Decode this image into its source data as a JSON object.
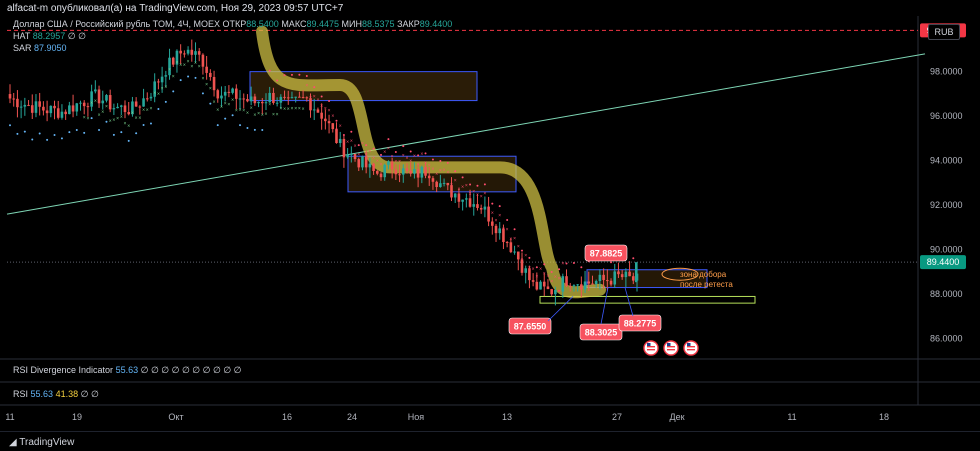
{
  "header": {
    "published": "alfacat-m опубликовал(а) на TradingView.com, Ноя 29, 2023 09:57 UTC+7"
  },
  "legend": {
    "symbol": "Доллар США / Российский рубль TOM, 4Ч, MOEX",
    "open_label": "ОТКР",
    "open_value": "88.5400",
    "high_label": "МАКС",
    "high_value": "89.4475",
    "low_label": "МИН",
    "low_value": "88.5375",
    "close_label": "ЗАКР",
    "close_value": "89.4400",
    "hat_label": "HAT",
    "hat_value": "88.2957",
    "hat_extra": "∅ ∅",
    "sar_label": "SAR",
    "sar_value": "87.9050"
  },
  "currency_button": "RUB",
  "rsi_div_panel": {
    "label": "RSI Divergence Indicator",
    "value": "55.63",
    "extra": "∅ ∅ ∅ ∅ ∅ ∅ ∅ ∅ ∅ ∅"
  },
  "rsi_panel": {
    "label": "RSI",
    "value1": "55.63",
    "value2": "41.38",
    "extra": "∅ ∅"
  },
  "footer": {
    "logo_text": "TradingView"
  },
  "chart_data": {
    "type": "candlestick",
    "y_range": [
      85,
      100.5
    ],
    "y_ticks": [
      86,
      88,
      90,
      92,
      94,
      96,
      98
    ],
    "y_tick_labels": [
      "86.0000",
      "88.0000",
      "90.0000",
      "92.0000",
      "94.0000",
      "96.0000",
      "98.0000"
    ],
    "x_ticks": [
      "11",
      "19",
      "Окт",
      "16",
      "24",
      "Ноя",
      "13",
      "27",
      "Дек",
      "11",
      "18"
    ],
    "price_labels": {
      "resistance": "99.8550",
      "current": "89.4400"
    },
    "annotations": {
      "peak": "87.8825",
      "low1": "87.6550",
      "low2": "88.3025",
      "low3": "88.2775",
      "note_line1": "зона добора",
      "note_line2": "после ретеста"
    },
    "colors": {
      "up": "#26a69a",
      "down": "#ef5350",
      "sar_up": "#64b5f6",
      "sar_cross": "#ff4d6d",
      "trendline": "#7ed6b5",
      "resistance": "#f23645",
      "marker": "#d4c545",
      "current": "#089981"
    },
    "path": [
      [
        96.8,
        95.6
      ],
      [
        96.5,
        95.1
      ],
      [
        96.3,
        95.8
      ],
      [
        96.2,
        96.5
      ],
      [
        96.6,
        97.1
      ],
      [
        96.9,
        96.2
      ],
      [
        96.4,
        96.0
      ],
      [
        96.3,
        97.3
      ],
      [
        97.0,
        98.5
      ],
      [
        98.2,
        99.1
      ],
      [
        99.0,
        98.4
      ],
      [
        98.6,
        97.1
      ],
      [
        97.0,
        96.8
      ],
      [
        96.9,
        96.5
      ],
      [
        96.6,
        96.9
      ],
      [
        96.9,
        96.6
      ],
      [
        96.5,
        96.8
      ],
      [
        96.8,
        96.2
      ],
      [
        96.0,
        94.8
      ],
      [
        94.6,
        94.1
      ],
      [
        94.0,
        93.5
      ],
      [
        93.4,
        93.8
      ],
      [
        93.8,
        93.2
      ],
      [
        93.3,
        93.6
      ],
      [
        93.6,
        92.6
      ],
      [
        92.7,
        92.4
      ],
      [
        92.4,
        92.1
      ],
      [
        92.0,
        91.0
      ],
      [
        91.0,
        89.8
      ],
      [
        89.9,
        88.5
      ],
      [
        88.4,
        88.0
      ],
      [
        88.1,
        88.8
      ],
      [
        88.7,
        88.4
      ],
      [
        88.5,
        88.7
      ],
      [
        88.6,
        88.9
      ],
      [
        88.8,
        88.6
      ],
      [
        88.6,
        89.4
      ]
    ]
  }
}
